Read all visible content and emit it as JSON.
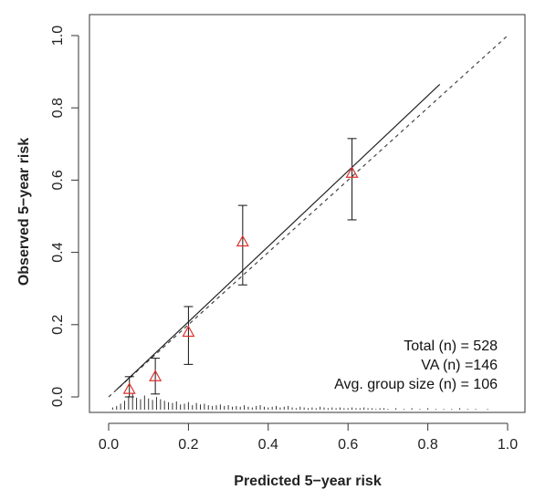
{
  "chart_data": {
    "type": "calibration",
    "xlabel": "Predicted 5−year risk",
    "ylabel": "Observed 5−year risk",
    "xlim": [
      0,
      1
    ],
    "ylim": [
      0,
      1
    ],
    "x_ticks": [
      {
        "value": 0.0,
        "label": "0.0"
      },
      {
        "value": 0.2,
        "label": "0.2"
      },
      {
        "value": 0.4,
        "label": "0.4"
      },
      {
        "value": 0.6,
        "label": "0.6"
      },
      {
        "value": 0.8,
        "label": "0.8"
      },
      {
        "value": 1.0,
        "label": "1.0"
      }
    ],
    "y_ticks": [
      {
        "value": 0.0,
        "label": "0.0"
      },
      {
        "value": 0.2,
        "label": "0.2"
      },
      {
        "value": 0.4,
        "label": "0.4"
      },
      {
        "value": 0.6,
        "label": "0.6"
      },
      {
        "value": 0.8,
        "label": "0.8"
      },
      {
        "value": 1.0,
        "label": "1.0"
      }
    ],
    "groups": [
      {
        "predicted": 0.052,
        "observed": 0.022,
        "lower": 0.0,
        "upper": 0.056
      },
      {
        "predicted": 0.117,
        "observed": 0.057,
        "lower": 0.008,
        "upper": 0.107
      },
      {
        "predicted": 0.2,
        "observed": 0.18,
        "lower": 0.09,
        "upper": 0.25
      },
      {
        "predicted": 0.336,
        "observed": 0.43,
        "lower": 0.31,
        "upper": 0.53
      },
      {
        "predicted": 0.61,
        "observed": 0.62,
        "lower": 0.49,
        "upper": 0.715
      }
    ],
    "reference_line": {
      "from": [
        0,
        0
      ],
      "to": [
        1,
        1
      ],
      "style": "dashed"
    },
    "calibration_curve": {
      "from": [
        0.02,
        0.02
      ],
      "to": [
        0.83,
        0.865
      ],
      "style": "solid"
    },
    "risk_histogram": {
      "x": [
        0.01,
        0.02,
        0.03,
        0.04,
        0.05,
        0.06,
        0.07,
        0.08,
        0.09,
        0.1,
        0.11,
        0.12,
        0.13,
        0.14,
        0.15,
        0.16,
        0.17,
        0.18,
        0.19,
        0.2,
        0.21,
        0.22,
        0.23,
        0.24,
        0.25,
        0.26,
        0.27,
        0.28,
        0.29,
        0.3,
        0.31,
        0.32,
        0.33,
        0.34,
        0.35,
        0.36,
        0.37,
        0.38,
        0.39,
        0.4,
        0.41,
        0.42,
        0.43,
        0.44,
        0.45,
        0.46,
        0.47,
        0.48,
        0.49,
        0.5,
        0.51,
        0.52,
        0.53,
        0.54,
        0.55,
        0.56,
        0.57,
        0.58,
        0.59,
        0.6,
        0.61,
        0.62,
        0.63,
        0.64,
        0.65,
        0.66,
        0.67,
        0.68,
        0.69,
        0.7,
        0.72,
        0.74,
        0.76,
        0.78,
        0.8,
        0.82,
        0.84,
        0.86,
        0.88,
        0.9,
        0.92,
        0.95
      ],
      "counts": [
        3,
        5,
        8,
        12,
        18,
        22,
        16,
        14,
        19,
        15,
        13,
        17,
        14,
        12,
        10,
        9,
        11,
        7,
        8,
        10,
        6,
        9,
        7,
        8,
        6,
        5,
        6,
        7,
        5,
        6,
        4,
        5,
        4,
        6,
        4,
        3,
        5,
        6,
        4,
        3,
        4,
        5,
        3,
        4,
        5,
        3,
        2,
        4,
        3,
        2,
        3,
        2,
        4,
        3,
        2,
        3,
        2,
        3,
        2,
        2,
        3,
        2,
        2,
        3,
        2,
        2,
        1,
        2,
        2,
        1,
        2,
        1,
        2,
        1,
        2,
        1,
        1,
        1,
        2,
        1,
        1,
        1
      ]
    },
    "legend_position": "bottom-right",
    "annotations": [
      "Total (n) = 528",
      "VA (n) =146",
      "Avg. group size (n) = 106"
    ]
  }
}
